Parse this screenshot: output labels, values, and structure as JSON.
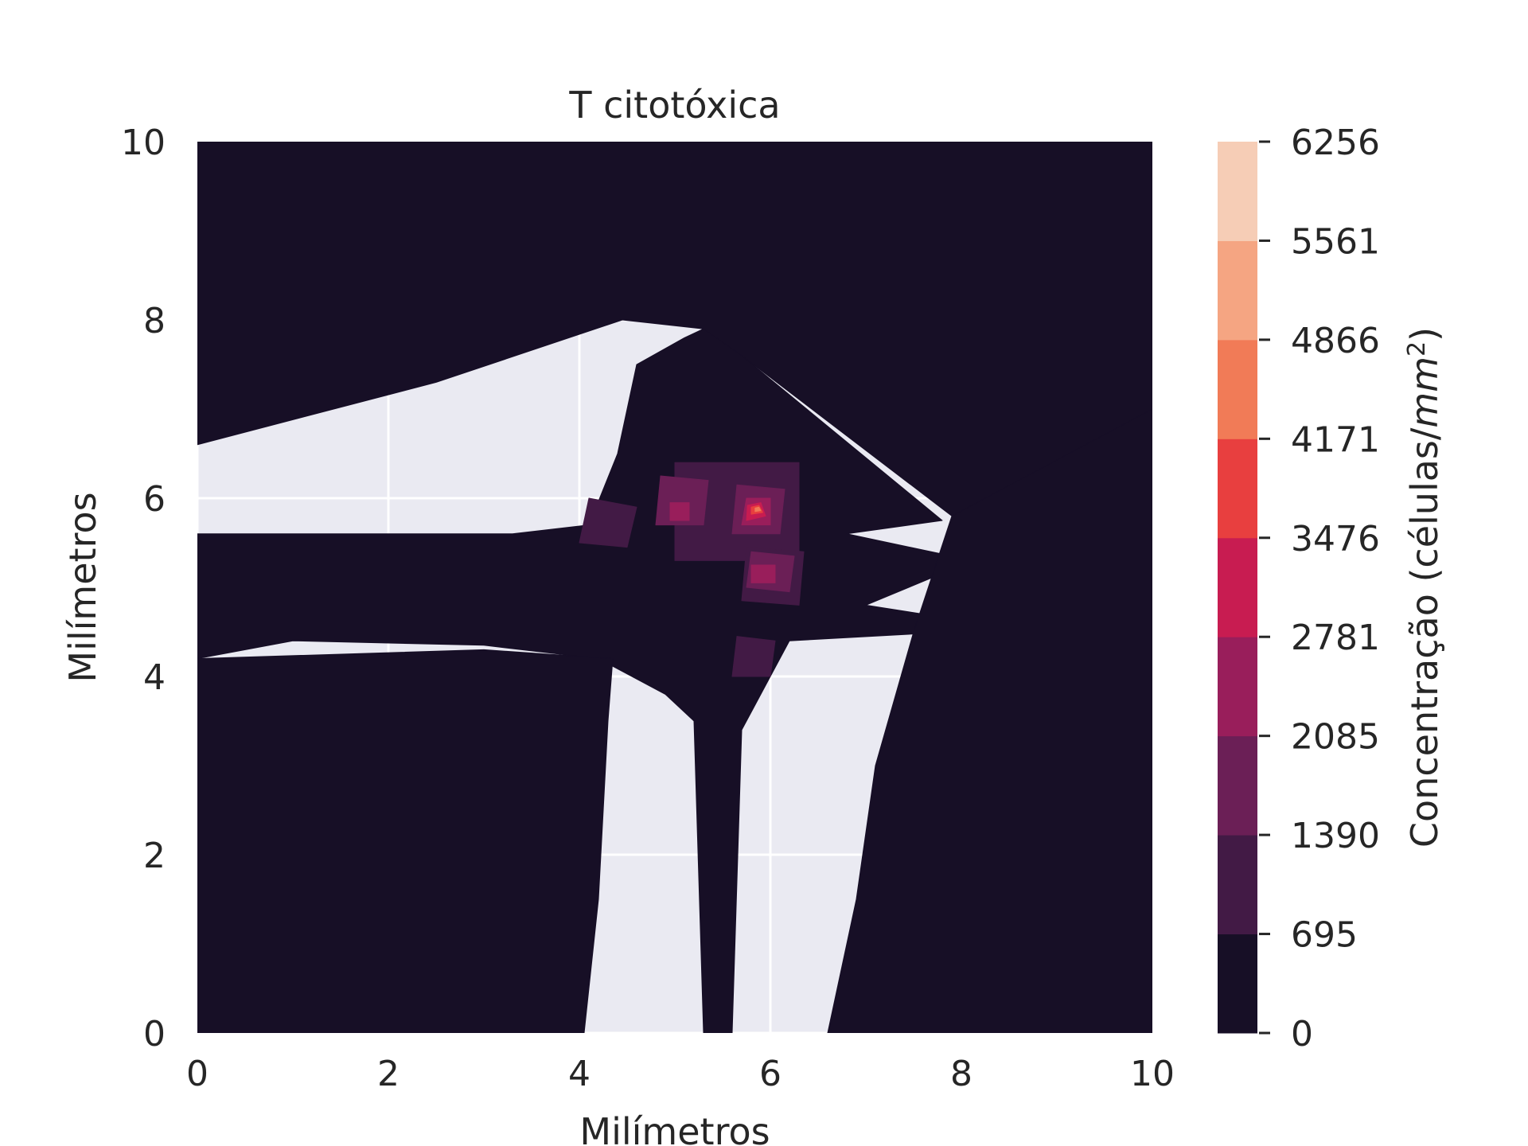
{
  "chart_data": {
    "type": "heatmap",
    "subtype": "filled contour",
    "title": "T citotóxica",
    "xlabel": "Milímetros",
    "ylabel": "Milímetros",
    "xlim": [
      0,
      10
    ],
    "ylim": [
      0,
      10
    ],
    "xticks": [
      "0",
      "2",
      "4",
      "6",
      "8",
      "10"
    ],
    "yticks": [
      "0",
      "2",
      "4",
      "6",
      "8",
      "10"
    ],
    "grid": true,
    "background_color": "#eaeaf2",
    "colorbar": {
      "label_main": "Concentração (células/",
      "label_unit": "mm",
      "label_exp": "2",
      "label_close": ")",
      "levels": [
        0,
        695,
        1390,
        2085,
        2781,
        3476,
        4171,
        4866,
        5561,
        6256
      ],
      "tick_labels": [
        "0",
        "695",
        "1390",
        "2085",
        "2781",
        "3476",
        "4171",
        "4866",
        "5561",
        "6256"
      ],
      "colors": [
        "#170f26",
        "#421a45",
        "#6b1f56",
        "#991e5b",
        "#c81c51",
        "#e83f3f",
        "#f17b57",
        "#f5a582",
        "#f6cdb6"
      ]
    },
    "regions": [
      {
        "band": "0-695",
        "description": "low concentration field covering most of the domain",
        "polygon": [
          [
            0,
            4.2
          ],
          [
            1,
            4.4
          ],
          [
            3,
            4.35
          ],
          [
            4.2,
            4.2
          ],
          [
            4.9,
            3.8
          ],
          [
            5.2,
            3.5
          ],
          [
            5.3,
            0
          ],
          [
            5.6,
            0
          ],
          [
            5.7,
            3.4
          ],
          [
            6.2,
            4.4
          ],
          [
            7.9,
            4.5
          ],
          [
            7.9,
            4.65
          ],
          [
            7,
            4.8
          ],
          [
            7.9,
            5.2
          ],
          [
            7.9,
            5.35
          ],
          [
            6.8,
            5.6
          ],
          [
            7.8,
            5.75
          ],
          [
            5.7,
            7.6
          ],
          [
            5.5,
            7.8
          ],
          [
            5.3,
            7.9
          ],
          [
            5.1,
            7.8
          ],
          [
            4.6,
            7.5
          ],
          [
            4.4,
            6.5
          ],
          [
            4.1,
            5.7
          ],
          [
            3.3,
            5.6
          ],
          [
            2.2,
            5.6
          ],
          [
            0,
            5.6
          ]
        ]
      },
      {
        "band": "0-695",
        "description": "lower right dark field",
        "polygon": [
          [
            6.6,
            0
          ],
          [
            10,
            0
          ],
          [
            10,
            10
          ],
          [
            8.2,
            10
          ],
          [
            7.9,
            5.8
          ],
          [
            7.5,
            4.5
          ],
          [
            7.1,
            3
          ],
          [
            6.9,
            1.5
          ]
        ]
      },
      {
        "band": "0-695",
        "description": "lower left dark field",
        "polygon": [
          [
            0,
            0
          ],
          [
            4.05,
            0
          ],
          [
            4.2,
            1.5
          ],
          [
            4.3,
            3.5
          ],
          [
            4.35,
            4.2
          ],
          [
            3,
            4.3
          ],
          [
            0,
            4.2
          ]
        ]
      },
      {
        "band": "0-695",
        "description": "upper dark field",
        "polygon": [
          [
            0,
            10
          ],
          [
            10,
            10
          ],
          [
            10,
            7
          ],
          [
            7.9,
            5.8
          ],
          [
            5.7,
            7.6
          ],
          [
            5.3,
            7.9
          ],
          [
            4.45,
            8
          ],
          [
            2.5,
            7.3
          ],
          [
            0,
            6.6
          ]
        ]
      },
      {
        "band": "695-1390",
        "description": "ring around central cluster",
        "polygon": [
          [
            5.0,
            5.3
          ],
          [
            6.3,
            5.3
          ],
          [
            6.3,
            6.4
          ],
          [
            5.0,
            6.4
          ]
        ]
      },
      {
        "band": "695-1390",
        "polygon": [
          [
            4.0,
            5.5
          ],
          [
            4.5,
            5.45
          ],
          [
            4.6,
            5.9
          ],
          [
            4.1,
            6.0
          ]
        ]
      },
      {
        "band": "695-1390",
        "polygon": [
          [
            5.6,
            4.0
          ],
          [
            6.0,
            4.0
          ],
          [
            6.05,
            4.4
          ],
          [
            5.65,
            4.45
          ]
        ]
      },
      {
        "band": "695-1390",
        "polygon": [
          [
            5.7,
            4.85
          ],
          [
            6.3,
            4.8
          ],
          [
            6.35,
            5.4
          ],
          [
            5.75,
            5.45
          ]
        ]
      },
      {
        "band": "1390-2085",
        "polygon": [
          [
            4.8,
            5.7
          ],
          [
            5.3,
            5.7
          ],
          [
            5.35,
            6.2
          ],
          [
            4.85,
            6.25
          ]
        ]
      },
      {
        "band": "1390-2085",
        "polygon": [
          [
            5.75,
            5.0
          ],
          [
            6.2,
            4.95
          ],
          [
            6.25,
            5.35
          ],
          [
            5.8,
            5.4
          ]
        ]
      },
      {
        "band": "1390-2085",
        "polygon": [
          [
            5.6,
            5.6
          ],
          [
            6.1,
            5.6
          ],
          [
            6.15,
            6.1
          ],
          [
            5.65,
            6.15
          ]
        ]
      },
      {
        "band": "2085-2781",
        "polygon": [
          [
            5.7,
            5.7
          ],
          [
            6.0,
            5.7
          ],
          [
            6.0,
            6.0
          ],
          [
            5.75,
            6.0
          ]
        ]
      },
      {
        "band": "2085-2781",
        "polygon": [
          [
            5.8,
            5.05
          ],
          [
            6.05,
            5.05
          ],
          [
            6.05,
            5.25
          ],
          [
            5.8,
            5.25
          ]
        ]
      },
      {
        "band": "2085-2781",
        "polygon": [
          [
            4.95,
            5.75
          ],
          [
            5.15,
            5.75
          ],
          [
            5.15,
            5.95
          ],
          [
            4.95,
            5.95
          ]
        ]
      },
      {
        "band": "2781-3476",
        "polygon": [
          [
            5.75,
            5.75
          ],
          [
            5.95,
            5.8
          ],
          [
            5.9,
            5.95
          ],
          [
            5.76,
            5.92
          ]
        ]
      },
      {
        "band": "3476-4171",
        "polygon": [
          [
            5.8,
            5.82
          ],
          [
            5.92,
            5.84
          ],
          [
            5.88,
            5.92
          ],
          [
            5.8,
            5.9
          ]
        ]
      },
      {
        "band": "4171-4866",
        "polygon": [
          [
            5.84,
            5.85
          ],
          [
            5.9,
            5.86
          ],
          [
            5.88,
            5.9
          ],
          [
            5.84,
            5.89
          ]
        ]
      }
    ]
  }
}
